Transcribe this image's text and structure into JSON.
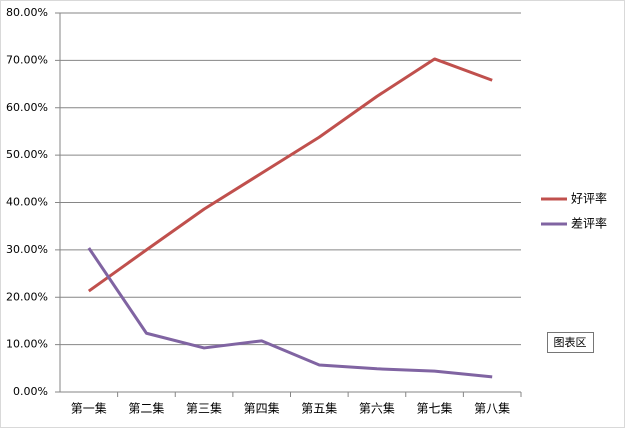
{
  "chart_data": {
    "type": "line",
    "categories": [
      "第一集",
      "第二集",
      "第三集",
      "第四集",
      "第五集",
      "第六集",
      "第七集",
      "第八集"
    ],
    "series": [
      {
        "name": "好评率",
        "color": "#c0504d",
        "values": [
          21.3,
          30,
          38.6,
          46.2,
          53.8,
          62.4,
          70.3,
          65.8
        ]
      },
      {
        "name": "差评率",
        "color": "#8064a2",
        "values": [
          30.4,
          12.4,
          9.3,
          10.8,
          5.7,
          4.9,
          4.4,
          3.2
        ]
      }
    ],
    "ylim": [
      0,
      80
    ],
    "yticks": [
      {
        "value": 0,
        "label": "0.00%"
      },
      {
        "value": 10,
        "label": "10.00%"
      },
      {
        "value": 20,
        "label": "20.00%"
      },
      {
        "value": 30,
        "label": "30.00%"
      },
      {
        "value": 40,
        "label": "40.00%"
      },
      {
        "value": 50,
        "label": "50.00%"
      },
      {
        "value": 60,
        "label": "60.00%"
      },
      {
        "value": 70,
        "label": "70.00%"
      },
      {
        "value": 80,
        "label": "80.00%"
      }
    ],
    "grid": true,
    "legend": "right"
  },
  "tooltip": "图表区"
}
